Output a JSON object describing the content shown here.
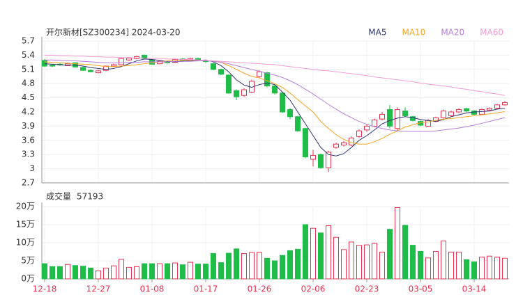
{
  "chart_data": {
    "type": "candlestick",
    "title": "开尔新材[SZ300234] 2024-03-20",
    "categories": [
      "12-18",
      null,
      null,
      null,
      null,
      null,
      null,
      "12-27",
      null,
      null,
      null,
      null,
      null,
      null,
      "01-08",
      null,
      null,
      null,
      null,
      null,
      null,
      "01-17",
      null,
      null,
      null,
      null,
      null,
      null,
      "01-26",
      null,
      null,
      null,
      null,
      null,
      null,
      "02-06",
      null,
      null,
      null,
      null,
      null,
      null,
      "02-23",
      null,
      null,
      null,
      null,
      null,
      null,
      "03-05",
      null,
      null,
      null,
      null,
      null,
      null,
      "03-14",
      null,
      null,
      null,
      null
    ],
    "open": [
      5.29,
      5.19,
      5.21,
      5.18,
      5.24,
      5.14,
      5.08,
      5.03,
      5.08,
      5.17,
      5.2,
      5.3,
      5.33,
      5.4,
      5.3,
      5.22,
      5.27,
      5.25,
      5.32,
      5.29,
      5.33,
      5.28,
      5.22,
      5.1,
      4.98,
      4.65,
      4.55,
      4.62,
      4.95,
      5.03,
      4.75,
      4.6,
      4.25,
      4.1,
      3.85,
      3.2,
      3.3,
      3.02,
      3.45,
      3.5,
      3.5,
      3.68,
      3.82,
      3.9,
      4.05,
      4.25,
      3.85,
      4.22,
      4.1,
      4.0,
      3.9,
      4.0,
      4.08,
      4.12,
      4.2,
      4.27,
      4.22,
      4.15,
      4.24,
      4.28,
      4.35
    ],
    "high": [
      5.32,
      5.21,
      5.23,
      5.24,
      5.25,
      5.16,
      5.1,
      5.09,
      5.18,
      5.22,
      5.35,
      5.36,
      5.39,
      5.41,
      5.31,
      5.29,
      5.28,
      5.33,
      5.34,
      5.35,
      5.35,
      5.3,
      5.24,
      5.12,
      5.0,
      4.68,
      4.7,
      4.88,
      5.08,
      5.05,
      4.78,
      4.62,
      4.28,
      4.12,
      3.87,
      3.4,
      3.32,
      3.38,
      3.55,
      3.58,
      3.68,
      3.83,
      3.95,
      4.06,
      4.2,
      4.35,
      4.3,
      4.3,
      4.12,
      4.02,
      4.05,
      4.1,
      4.25,
      4.23,
      4.28,
      4.29,
      4.24,
      4.27,
      4.3,
      4.37,
      4.43
    ],
    "low": [
      5.15,
      5.15,
      5.18,
      5.17,
      5.14,
      5.07,
      5.04,
      5.02,
      5.06,
      5.15,
      5.19,
      5.28,
      5.31,
      5.31,
      5.2,
      5.21,
      5.22,
      5.24,
      5.27,
      5.28,
      5.27,
      5.24,
      5.08,
      4.98,
      4.58,
      4.45,
      4.52,
      4.6,
      4.93,
      4.72,
      4.57,
      4.18,
      4.05,
      3.78,
      3.22,
      3.05,
      3.0,
      2.93,
      3.42,
      3.47,
      3.48,
      3.65,
      3.78,
      3.88,
      4.02,
      3.85,
      3.8,
      4.1,
      4.0,
      3.9,
      3.88,
      3.98,
      4.06,
      4.1,
      4.18,
      4.2,
      4.13,
      4.14,
      4.22,
      4.26,
      4.33
    ],
    "close": [
      5.17,
      5.17,
      5.2,
      5.22,
      5.15,
      5.08,
      5.05,
      5.07,
      5.17,
      5.2,
      5.33,
      5.34,
      5.37,
      5.33,
      5.21,
      5.27,
      5.24,
      5.31,
      5.28,
      5.33,
      5.28,
      5.27,
      5.1,
      5.0,
      4.6,
      4.52,
      4.67,
      4.85,
      5.05,
      4.75,
      4.6,
      4.2,
      4.1,
      3.8,
      3.25,
      3.28,
      3.02,
      3.35,
      3.52,
      3.55,
      3.65,
      3.8,
      3.9,
      4.03,
      4.15,
      3.9,
      4.25,
      4.12,
      4.02,
      3.92,
      4.02,
      4.08,
      4.22,
      4.2,
      4.25,
      4.22,
      4.15,
      4.25,
      4.28,
      4.35,
      4.4
    ],
    "up_color": "#e8304f",
    "down_color": "#1ebd48",
    "ylim": [
      2.7,
      5.7
    ],
    "yticks": [
      2.7,
      3,
      3.3,
      3.6,
      3.9,
      4.2,
      4.5,
      4.8,
      5.1,
      5.4,
      5.7
    ],
    "legend": "top-right",
    "series": [
      {
        "name": "MA5",
        "color": "#2e3170",
        "values": [
          5.22,
          5.21,
          5.2,
          5.19,
          5.19,
          5.17,
          5.14,
          5.12,
          5.1,
          5.12,
          5.16,
          5.22,
          5.28,
          5.32,
          5.31,
          5.29,
          5.27,
          5.26,
          5.27,
          5.29,
          5.29,
          5.3,
          5.26,
          5.18,
          5.05,
          4.88,
          4.77,
          4.72,
          4.78,
          4.81,
          4.78,
          4.62,
          4.45,
          4.2,
          3.95,
          3.7,
          3.45,
          3.3,
          3.27,
          3.32,
          3.45,
          3.6,
          3.7,
          3.82,
          3.95,
          4.02,
          4.07,
          4.1,
          4.08,
          4.04,
          4.02,
          4.0,
          4.04,
          4.1,
          4.14,
          4.18,
          4.2,
          4.21,
          4.22,
          4.26,
          4.28
        ]
      },
      {
        "name": "MA10",
        "color": "#f5a623",
        "values": [
          5.26,
          5.25,
          5.24,
          5.23,
          5.22,
          5.21,
          5.2,
          5.18,
          5.16,
          5.16,
          5.17,
          5.18,
          5.2,
          5.22,
          5.24,
          5.26,
          5.28,
          5.29,
          5.29,
          5.3,
          5.3,
          5.29,
          5.28,
          5.25,
          5.18,
          5.1,
          5.02,
          4.95,
          4.92,
          4.86,
          4.8,
          4.72,
          4.6,
          4.46,
          4.33,
          4.2,
          4.0,
          3.85,
          3.72,
          3.62,
          3.55,
          3.52,
          3.52,
          3.57,
          3.64,
          3.73,
          3.8,
          3.88,
          3.93,
          3.97,
          3.99,
          4.02,
          4.05,
          4.06,
          4.08,
          4.1,
          4.12,
          4.14,
          4.16,
          4.18,
          4.21
        ]
      },
      {
        "name": "MA20",
        "color": "#b57edc",
        "values": [
          5.3,
          5.3,
          5.29,
          5.29,
          5.28,
          5.27,
          5.26,
          5.25,
          5.24,
          5.24,
          5.24,
          5.25,
          5.25,
          5.26,
          5.26,
          5.26,
          5.26,
          5.27,
          5.27,
          5.27,
          5.28,
          5.28,
          5.27,
          5.25,
          5.22,
          5.18,
          5.14,
          5.1,
          5.06,
          5.02,
          4.98,
          4.93,
          4.86,
          4.78,
          4.68,
          4.58,
          4.47,
          4.36,
          4.26,
          4.16,
          4.08,
          4.0,
          3.94,
          3.89,
          3.85,
          3.82,
          3.8,
          3.79,
          3.79,
          3.79,
          3.79,
          3.8,
          3.82,
          3.84,
          3.86,
          3.89,
          3.92,
          3.96,
          4.0,
          4.04,
          4.08
        ]
      },
      {
        "name": "MA60",
        "color": "#f29bd3",
        "values": [
          5.4,
          5.4,
          5.39,
          5.39,
          5.38,
          5.38,
          5.37,
          5.37,
          5.36,
          5.36,
          5.35,
          5.35,
          5.34,
          5.34,
          5.33,
          5.33,
          5.32,
          5.32,
          5.31,
          5.31,
          5.3,
          5.29,
          5.28,
          5.27,
          5.26,
          5.25,
          5.24,
          5.23,
          5.22,
          5.21,
          5.2,
          5.18,
          5.16,
          5.14,
          5.12,
          5.1,
          5.08,
          5.07,
          5.05,
          5.03,
          5.01,
          4.99,
          4.97,
          4.94,
          4.92,
          4.9,
          4.88,
          4.86,
          4.84,
          4.81,
          4.79,
          4.77,
          4.75,
          4.73,
          4.7,
          4.68,
          4.65,
          4.63,
          4.6,
          4.58,
          4.55
        ]
      }
    ],
    "volume": {
      "title": "成交量",
      "values": [
        42000,
        34000,
        34000,
        40000,
        37000,
        35000,
        30000,
        22000,
        30000,
        36000,
        54000,
        32000,
        34000,
        42000,
        42000,
        42000,
        42000,
        44000,
        39000,
        46000,
        41000,
        41000,
        70000,
        45000,
        71000,
        83000,
        70000,
        73000,
        73000,
        57000,
        50000,
        65000,
        78000,
        82000,
        150000,
        140000,
        127000,
        147000,
        115000,
        81000,
        102000,
        93000,
        94000,
        98000,
        74000,
        137000,
        197000,
        148000,
        93000,
        76000,
        58000,
        76000,
        105000,
        74000,
        74000,
        53000,
        47000,
        60000,
        63000,
        60000,
        57193
      ],
      "ylim": [
        0,
        200000
      ],
      "yticks": [
        {
          "value": 0,
          "label": "0万"
        },
        {
          "value": 50000,
          "label": "5万"
        },
        {
          "value": 100000,
          "label": "10万"
        },
        {
          "value": 150000,
          "label": "15万"
        },
        {
          "value": 200000,
          "label": "20万"
        }
      ]
    }
  }
}
